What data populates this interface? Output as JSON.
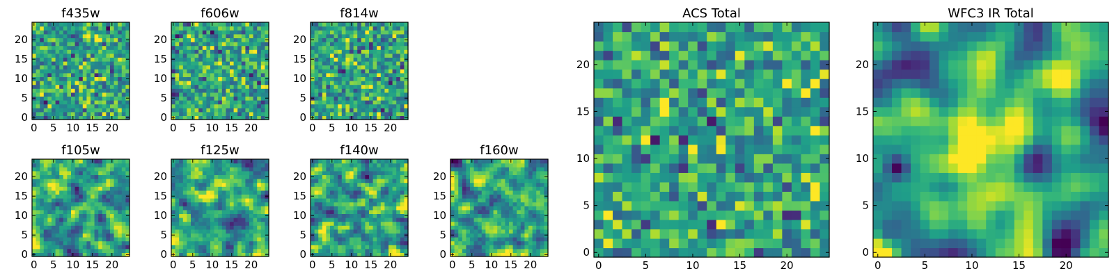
{
  "figure": {
    "description_colormap": "viridis"
  },
  "chart_data": [
    {
      "type": "heatmap",
      "title": "f435w",
      "size": 25,
      "seed": 11,
      "smooth": 0,
      "blobs": [],
      "xticks": [
        0,
        5,
        10,
        15,
        20
      ],
      "yticks": [
        0,
        5,
        10,
        15,
        20
      ],
      "xlim": [
        0,
        25
      ],
      "ylim": [
        0,
        25
      ]
    },
    {
      "type": "heatmap",
      "title": "f606w",
      "size": 25,
      "seed": 23,
      "smooth": 0,
      "blobs": [],
      "xticks": [
        0,
        5,
        10,
        15,
        20
      ],
      "yticks": [
        0,
        5,
        10,
        15,
        20
      ],
      "xlim": [
        0,
        25
      ],
      "ylim": [
        0,
        25
      ]
    },
    {
      "type": "heatmap",
      "title": "f814w",
      "size": 25,
      "seed": 37,
      "smooth": 0,
      "blobs": [],
      "xticks": [
        0,
        5,
        10,
        15,
        20
      ],
      "yticks": [
        0,
        5,
        10,
        15,
        20
      ],
      "xlim": [
        0,
        25
      ],
      "ylim": [
        0,
        25
      ]
    },
    {
      "type": "heatmap",
      "title": "f105w",
      "size": 25,
      "seed": 41,
      "smooth": 1,
      "blobs": [],
      "xticks": [
        0,
        5,
        10,
        15,
        20
      ],
      "yticks": [
        0,
        5,
        10,
        15,
        20
      ],
      "xlim": [
        0,
        25
      ],
      "ylim": [
        0,
        25
      ]
    },
    {
      "type": "heatmap",
      "title": "f125w",
      "size": 25,
      "seed": 53,
      "smooth": 1,
      "blobs": [],
      "xticks": [
        0,
        5,
        10,
        15,
        20
      ],
      "yticks": [
        0,
        5,
        10,
        15,
        20
      ],
      "xlim": [
        0,
        25
      ],
      "ylim": [
        0,
        25
      ]
    },
    {
      "type": "heatmap",
      "title": "f140w",
      "size": 25,
      "seed": 67,
      "smooth": 1,
      "blobs": [],
      "xticks": [
        0,
        5,
        10,
        15,
        20
      ],
      "yticks": [
        0,
        5,
        10,
        15,
        20
      ],
      "xlim": [
        0,
        25
      ],
      "ylim": [
        0,
        25
      ]
    },
    {
      "type": "heatmap",
      "title": "f160w",
      "size": 25,
      "seed": 79,
      "smooth": 1,
      "blobs": [],
      "xticks": [
        0,
        5,
        10,
        15,
        20
      ],
      "yticks": [
        0,
        5,
        10,
        15,
        20
      ],
      "xlim": [
        0,
        25
      ],
      "ylim": [
        0,
        25
      ]
    },
    {
      "type": "heatmap",
      "title": "ACS Total",
      "size": 25,
      "seed": 97,
      "smooth": 0,
      "blobs": [],
      "xticks": [
        0,
        5,
        10,
        15,
        20
      ],
      "yticks": [
        0,
        5,
        10,
        15,
        20
      ],
      "xlim": [
        0,
        25
      ],
      "ylim": [
        0,
        25
      ]
    },
    {
      "type": "heatmap",
      "title": "WFC3 IR Total",
      "size": 25,
      "seed": 131,
      "smooth": 2,
      "blobs": [
        {
          "x": 12,
          "y": 12,
          "sigma": 2.6,
          "amp": 0.55
        },
        {
          "x": 20,
          "y": 1,
          "sigma": 1.4,
          "amp": -0.75
        },
        {
          "x": 2,
          "y": 9,
          "sigma": 0.9,
          "amp": -0.6
        },
        {
          "x": 1,
          "y": 2,
          "sigma": 1.0,
          "amp": -0.35
        }
      ],
      "xticks": [
        0,
        5,
        10,
        15,
        20
      ],
      "yticks": [
        0,
        5,
        10,
        15,
        20
      ],
      "xlim": [
        0,
        25
      ],
      "ylim": [
        0,
        25
      ]
    }
  ]
}
